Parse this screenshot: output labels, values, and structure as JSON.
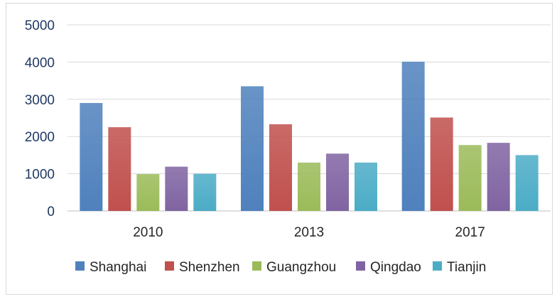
{
  "colors": {
    "axis_text": "#1f3864",
    "gridline": "#d9d9d9",
    "axis_line": "#bfbfbf"
  },
  "chart_data": {
    "type": "bar",
    "title": "",
    "xlabel": "",
    "ylabel": "",
    "categories": [
      "2010",
      "2013",
      "2017"
    ],
    "ylim": [
      0,
      5000
    ],
    "yticks": [
      0,
      1000,
      2000,
      3000,
      4000,
      5000
    ],
    "grid": true,
    "legend_position": "bottom",
    "series": [
      {
        "name": "Shanghai",
        "color": "#4f81bd",
        "values": [
          2900,
          3350,
          4010
        ]
      },
      {
        "name": "Shenzhen",
        "color": "#c0504d",
        "values": [
          2250,
          2330,
          2510
        ]
      },
      {
        "name": "Guangzhou",
        "color": "#9bbb59",
        "values": [
          990,
          1300,
          1770
        ]
      },
      {
        "name": "Qingdao",
        "color": "#8064a2",
        "values": [
          1190,
          1540,
          1830
        ]
      },
      {
        "name": "Tianjin",
        "color": "#4bacc6",
        "values": [
          1000,
          1300,
          1500
        ]
      }
    ]
  }
}
